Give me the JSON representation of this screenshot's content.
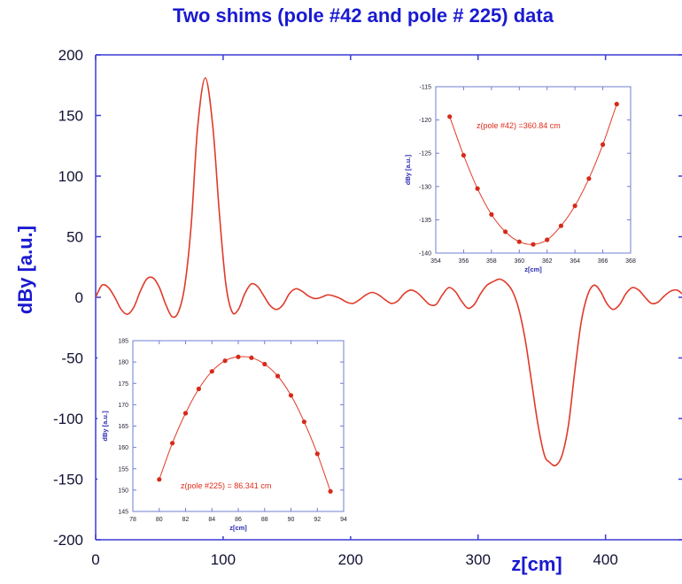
{
  "colors": {
    "axis": "#3b3bd6",
    "text": "#1a1ad0",
    "curve": "#e03a2a",
    "marker": "#d62a1a",
    "inset_frame": "#6f7fd0",
    "inset_text": "#222233",
    "inset_label": "#2a2ab0",
    "annotation": "#e02a1a"
  },
  "chart_data": [
    {
      "type": "line",
      "title": "Two shims (pole #42 and pole # 225) data",
      "xlabel": "z[cm]",
      "ylabel": "dBy [a.u.]",
      "xlim": [
        0,
        460
      ],
      "ylim": [
        -200,
        200
      ],
      "xticks": [
        "0",
        "100",
        "200",
        "300",
        "400"
      ],
      "yticks": [
        "200",
        "150",
        "100",
        "50",
        "0",
        "-50",
        "-100",
        "-150",
        "-200"
      ],
      "grid": false,
      "series": [
        {
          "points": [
            [
              0,
              0
            ],
            [
              5,
              10
            ],
            [
              10,
              8
            ],
            [
              15,
              0
            ],
            [
              20,
              -10
            ],
            [
              25,
              -14
            ],
            [
              30,
              -8
            ],
            [
              35,
              5
            ],
            [
              40,
              15
            ],
            [
              45,
              16
            ],
            [
              50,
              8
            ],
            [
              55,
              -6
            ],
            [
              60,
              -16
            ],
            [
              65,
              -12
            ],
            [
              70,
              10
            ],
            [
              75,
              60
            ],
            [
              80,
              140
            ],
            [
              86,
              181
            ],
            [
              92,
              140
            ],
            [
              97,
              70
            ],
            [
              102,
              12
            ],
            [
              107,
              -12
            ],
            [
              112,
              -10
            ],
            [
              117,
              3
            ],
            [
              122,
              11
            ],
            [
              127,
              9
            ],
            [
              132,
              1
            ],
            [
              137,
              -7
            ],
            [
              142,
              -10
            ],
            [
              147,
              -6
            ],
            [
              152,
              3
            ],
            [
              157,
              7
            ],
            [
              162,
              5
            ],
            [
              167,
              1
            ],
            [
              172,
              -1
            ],
            [
              177,
              0
            ],
            [
              182,
              2
            ],
            [
              187,
              1
            ],
            [
              192,
              -1
            ],
            [
              197,
              -4
            ],
            [
              202,
              -5
            ],
            [
              207,
              -2
            ],
            [
              212,
              2
            ],
            [
              217,
              4
            ],
            [
              222,
              2
            ],
            [
              227,
              -2
            ],
            [
              232,
              -5
            ],
            [
              237,
              -3
            ],
            [
              242,
              3
            ],
            [
              247,
              6
            ],
            [
              252,
              4
            ],
            [
              257,
              -1
            ],
            [
              262,
              -6
            ],
            [
              267,
              -6
            ],
            [
              272,
              2
            ],
            [
              277,
              8
            ],
            [
              282,
              5
            ],
            [
              287,
              -3
            ],
            [
              292,
              -9
            ],
            [
              297,
              -6
            ],
            [
              302,
              3
            ],
            [
              307,
              10
            ],
            [
              312,
              13
            ],
            [
              317,
              15
            ],
            [
              322,
              12
            ],
            [
              327,
              5
            ],
            [
              332,
              -10
            ],
            [
              337,
              -35
            ],
            [
              342,
              -70
            ],
            [
              347,
              -105
            ],
            [
              352,
              -130
            ],
            [
              356,
              -136
            ],
            [
              361,
              -138.7
            ],
            [
              366,
              -130
            ],
            [
              371,
              -105
            ],
            [
              376,
              -60
            ],
            [
              381,
              -20
            ],
            [
              386,
              2
            ],
            [
              391,
              10
            ],
            [
              396,
              5
            ],
            [
              401,
              -5
            ],
            [
              406,
              -10
            ],
            [
              411,
              -6
            ],
            [
              416,
              3
            ],
            [
              421,
              8
            ],
            [
              426,
              6
            ],
            [
              431,
              0
            ],
            [
              436,
              -5
            ],
            [
              441,
              -4
            ],
            [
              446,
              1
            ],
            [
              451,
              5
            ],
            [
              456,
              6
            ],
            [
              460,
              3
            ]
          ]
        }
      ]
    },
    {
      "type": "scatter",
      "xlabel": "z[cm]",
      "ylabel": "dBy [a.u.]",
      "annotation": "z(pole #42) =360.84 cm",
      "xlim": [
        354,
        368
      ],
      "ylim": [
        -140,
        -115
      ],
      "xticks": [
        "354",
        "356",
        "358",
        "360",
        "362",
        "364",
        "366",
        "368"
      ],
      "yticks": [
        "-115",
        "-120",
        "-125",
        "-130",
        "-135",
        "-140"
      ],
      "points": [
        [
          355,
          -119.5
        ],
        [
          356,
          -125.3
        ],
        [
          357,
          -130.3
        ],
        [
          358,
          -134.2
        ],
        [
          359,
          -136.8
        ],
        [
          360,
          -138.3
        ],
        [
          361,
          -138.7
        ],
        [
          362,
          -138.0
        ],
        [
          363,
          -135.9
        ],
        [
          364,
          -132.9
        ],
        [
          365,
          -128.8
        ],
        [
          366,
          -123.7
        ],
        [
          367,
          -117.6
        ]
      ]
    },
    {
      "type": "scatter",
      "xlabel": "z[cm]",
      "ylabel": "dBy [a.u.]",
      "annotation": "z(pole #225) = 86.341 cm",
      "xlim": [
        78,
        94
      ],
      "ylim": [
        145,
        185
      ],
      "xticks": [
        "78",
        "80",
        "82",
        "84",
        "86",
        "88",
        "90",
        "92",
        "94"
      ],
      "yticks": [
        "185",
        "180",
        "175",
        "170",
        "165",
        "160",
        "155",
        "150",
        "145"
      ],
      "points": [
        [
          80,
          152.5
        ],
        [
          81,
          161
        ],
        [
          82,
          168
        ],
        [
          83,
          173.7
        ],
        [
          84,
          177.8
        ],
        [
          85,
          180.3
        ],
        [
          86,
          181.2
        ],
        [
          87,
          181.0
        ],
        [
          88,
          179.5
        ],
        [
          89,
          176.7
        ],
        [
          90,
          172.2
        ],
        [
          91,
          166
        ],
        [
          92,
          158.5
        ],
        [
          93,
          149.7
        ]
      ]
    }
  ]
}
